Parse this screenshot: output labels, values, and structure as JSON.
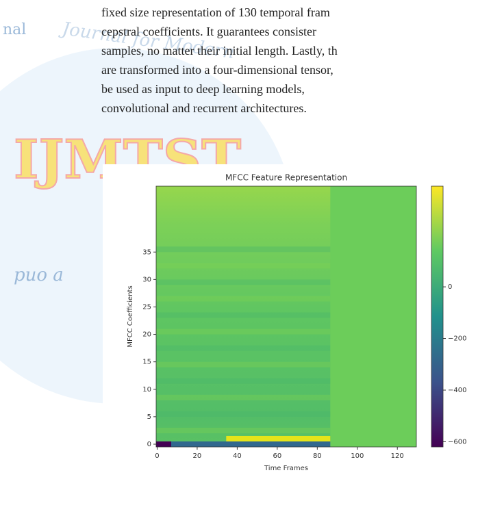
{
  "document": {
    "watermark": {
      "mark": "IJMTST",
      "left_text": "nal",
      "left_lower": "puo a",
      "arc_text": "Journal for Modern"
    },
    "paragraph": {
      "lines": [
        "fixed size representation of 130 temporal fram",
        "cepstral coefficients. It guarantees consister",
        "samples, no matter their initial length. Lastly, th",
        "are transformed into a four-dimensional tensor,",
        "be used as input to deep learning models,",
        "convolutional and recurrent architectures."
      ]
    }
  },
  "chart_data": {
    "type": "heatmap",
    "title": "MFCC Feature Representation",
    "x_label": "Time Frames",
    "y_label": "MFCC Coefficients",
    "xlim": [
      -0.5,
      129.5
    ],
    "xticks": [
      0,
      20,
      40,
      60,
      80,
      100,
      120
    ],
    "ylim": [
      -0.5,
      47
    ],
    "yticks": [
      0,
      5,
      10,
      15,
      20,
      25,
      30,
      35
    ],
    "colorbar_lim": [
      -620,
      390
    ],
    "colorbar_ticks": [
      0,
      {
        "value": -200,
        "label": "−200"
      },
      {
        "value": -400,
        "label": "−400"
      },
      {
        "value": -600,
        "label": "−600"
      }
    ]
  }
}
